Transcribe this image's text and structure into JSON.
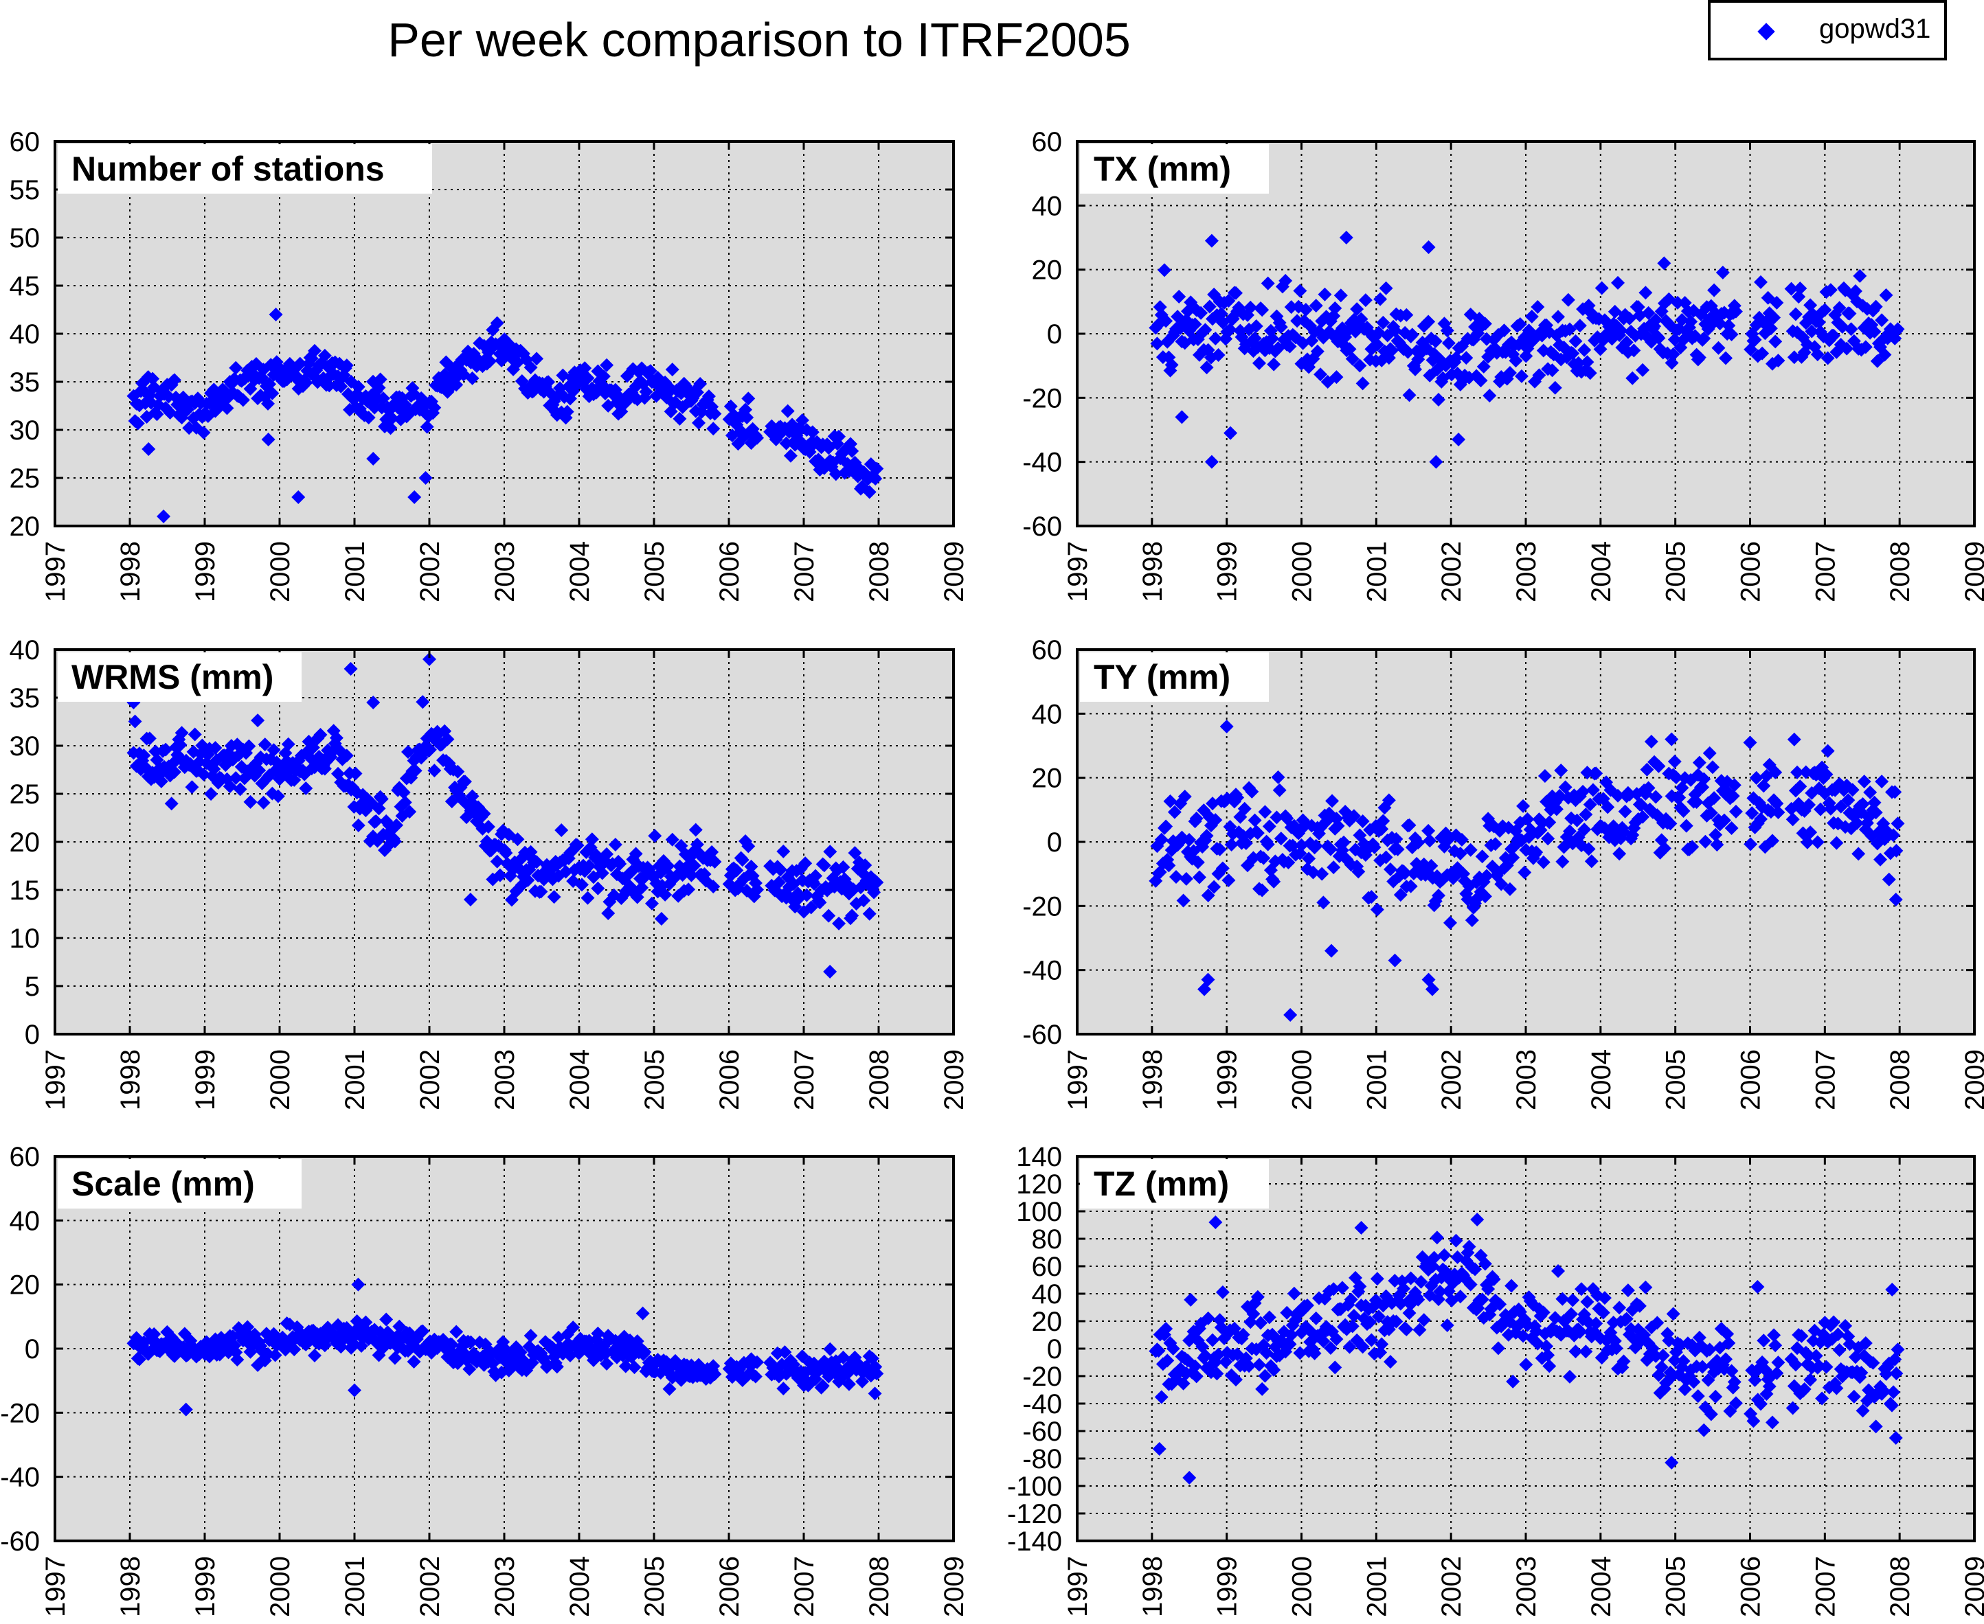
{
  "figure": {
    "title": "Per week comparison to ITRF2005",
    "legend": {
      "label": "gopwd31",
      "color": "#0000ff"
    },
    "colors": {
      "panel_background": "#dcdcdc",
      "marker": "#0000ff",
      "grid": "#000000"
    }
  },
  "chart_data": [
    {
      "type": "scatter",
      "title": "Number of stations",
      "series": [
        {
          "name": "gopwd31",
          "color": "#0000ff"
        }
      ],
      "xlim": [
        1997,
        2009
      ],
      "ylim": [
        20,
        60
      ],
      "xticks": [
        1997,
        1998,
        1999,
        2000,
        2001,
        2002,
        2003,
        2004,
        2005,
        2006,
        2007,
        2008,
        2009
      ],
      "yticks": [
        20,
        25,
        30,
        35,
        40,
        45,
        50,
        55,
        60
      ],
      "grid": true,
      "trend": [
        [
          1998.05,
          33
        ],
        [
          1998.5,
          34
        ],
        [
          1998.9,
          31.5
        ],
        [
          1999.5,
          34.5
        ],
        [
          2000.1,
          36
        ],
        [
          2000.7,
          36.5
        ],
        [
          2001.0,
          34
        ],
        [
          2001.6,
          32
        ],
        [
          2002.0,
          33
        ],
        [
          2002.3,
          36
        ],
        [
          2002.9,
          38.5
        ],
        [
          2003.3,
          36
        ],
        [
          2003.7,
          32.5
        ],
        [
          2004.0,
          36.5
        ],
        [
          2004.5,
          33
        ],
        [
          2004.9,
          35.5
        ],
        [
          2005.5,
          33
        ],
        [
          2006.1,
          31
        ],
        [
          2006.6,
          30.5
        ],
        [
          2007.0,
          29
        ],
        [
          2007.5,
          27
        ],
        [
          2007.95,
          24
        ]
      ],
      "spread": 1.6,
      "outliers": [
        [
          1998.45,
          21
        ],
        [
          1998.25,
          28
        ],
        [
          2000.25,
          23
        ],
        [
          2001.8,
          23
        ],
        [
          2001.95,
          25
        ],
        [
          1999.95,
          42
        ],
        [
          1999.85,
          29
        ],
        [
          2001.25,
          27
        ]
      ]
    },
    {
      "type": "scatter",
      "title": "TX (mm)",
      "series": [
        {
          "name": "gopwd31",
          "color": "#0000ff"
        }
      ],
      "xlim": [
        1997,
        2009
      ],
      "ylim": [
        -60,
        60
      ],
      "xticks": [
        1997,
        1998,
        1999,
        2000,
        2001,
        2002,
        2003,
        2004,
        2005,
        2006,
        2007,
        2008,
        2009
      ],
      "yticks": [
        -60,
        -40,
        -20,
        0,
        20,
        40,
        60
      ],
      "grid": true,
      "trend": [
        [
          1998.05,
          2
        ],
        [
          1999.0,
          5
        ],
        [
          2000.0,
          0
        ],
        [
          2001.0,
          -3
        ],
        [
          2002.0,
          -6
        ],
        [
          2002.6,
          -5
        ],
        [
          2003.0,
          -4
        ],
        [
          2004.0,
          0
        ],
        [
          2005.0,
          1
        ],
        [
          2006.0,
          3
        ],
        [
          2007.0,
          3
        ],
        [
          2007.95,
          2
        ]
      ],
      "spread": 9,
      "outliers": [
        [
          1998.8,
          -40
        ],
        [
          2001.8,
          -40
        ],
        [
          1999.05,
          -31
        ],
        [
          2002.1,
          -33
        ],
        [
          2000.6,
          30
        ],
        [
          1998.8,
          29
        ],
        [
          2001.7,
          27
        ],
        [
          2004.85,
          22
        ],
        [
          1998.4,
          -26
        ]
      ]
    },
    {
      "type": "scatter",
      "title": "WRMS (mm)",
      "series": [
        {
          "name": "gopwd31",
          "color": "#0000ff"
        }
      ],
      "xlim": [
        1997,
        2009
      ],
      "ylim": [
        0,
        40
      ],
      "xticks": [
        1997,
        1998,
        1999,
        2000,
        2001,
        2002,
        2003,
        2004,
        2005,
        2006,
        2007,
        2008,
        2009
      ],
      "yticks": [
        0,
        5,
        10,
        15,
        20,
        25,
        30,
        35,
        40
      ],
      "grid": true,
      "trend": [
        [
          1998.05,
          29
        ],
        [
          1999.0,
          28
        ],
        [
          2000.0,
          28
        ],
        [
          2000.8,
          29
        ],
        [
          2001.0,
          25
        ],
        [
          2001.5,
          20
        ],
        [
          2001.9,
          31
        ],
        [
          2002.2,
          29
        ],
        [
          2002.6,
          23
        ],
        [
          2003.0,
          18
        ],
        [
          2003.6,
          17
        ],
        [
          2004.0,
          18
        ],
        [
          2004.5,
          17
        ],
        [
          2005.0,
          17
        ],
        [
          2006.0,
          17
        ],
        [
          2007.0,
          15.5
        ],
        [
          2007.95,
          15
        ]
      ],
      "spread": 2.3,
      "outliers": [
        [
          2007.35,
          6.5
        ],
        [
          2002.0,
          39
        ],
        [
          2000.95,
          38
        ],
        [
          2001.25,
          34.5
        ],
        [
          2002.55,
          14
        ],
        [
          2005.1,
          12
        ],
        [
          1998.05,
          34.5
        ]
      ]
    },
    {
      "type": "scatter",
      "title": "TY (mm)",
      "series": [
        {
          "name": "gopwd31",
          "color": "#0000ff"
        }
      ],
      "xlim": [
        1997,
        2009
      ],
      "ylim": [
        -60,
        60
      ],
      "xticks": [
        1997,
        1998,
        1999,
        2000,
        2001,
        2002,
        2003,
        2004,
        2005,
        2006,
        2007,
        2008,
        2009
      ],
      "yticks": [
        -60,
        -40,
        -20,
        0,
        20,
        40,
        60
      ],
      "grid": true,
      "trend": [
        [
          1998.05,
          -3
        ],
        [
          1999.0,
          2
        ],
        [
          2000.0,
          0
        ],
        [
          2001.0,
          -2
        ],
        [
          2001.8,
          -8
        ],
        [
          2002.2,
          -12
        ],
        [
          2003.0,
          3
        ],
        [
          2004.0,
          8
        ],
        [
          2005.0,
          12
        ],
        [
          2006.0,
          12
        ],
        [
          2007.0,
          14
        ],
        [
          2007.95,
          4
        ]
      ],
      "spread": 11,
      "outliers": [
        [
          1999.85,
          -54
        ],
        [
          1998.7,
          -46
        ],
        [
          1998.75,
          -43
        ],
        [
          2001.75,
          -46
        ],
        [
          2001.7,
          -43
        ],
        [
          1999.0,
          36
        ],
        [
          2000.4,
          -34
        ],
        [
          2001.25,
          -37
        ],
        [
          2004.95,
          32
        ],
        [
          2006.0,
          31
        ],
        [
          2007.95,
          -18
        ]
      ]
    },
    {
      "type": "scatter",
      "title": "Scale (mm)",
      "series": [
        {
          "name": "gopwd31",
          "color": "#0000ff"
        }
      ],
      "xlim": [
        1997,
        2009
      ],
      "ylim": [
        -60,
        60
      ],
      "xticks": [
        1997,
        1998,
        1999,
        2000,
        2001,
        2002,
        2003,
        2004,
        2005,
        2006,
        2007,
        2008,
        2009
      ],
      "yticks": [
        -60,
        -40,
        -20,
        0,
        20,
        40,
        60
      ],
      "grid": true,
      "trend": [
        [
          1998.05,
          2
        ],
        [
          1999.0,
          0
        ],
        [
          2000.0,
          2
        ],
        [
          2001.0,
          5
        ],
        [
          2002.0,
          0
        ],
        [
          2003.0,
          -3
        ],
        [
          2004.0,
          1
        ],
        [
          2004.8,
          0
        ],
        [
          2005.0,
          -7
        ],
        [
          2006.0,
          -6
        ],
        [
          2007.0,
          -7
        ],
        [
          2007.95,
          -6
        ]
      ],
      "spread": 3.5,
      "outliers": [
        [
          1998.75,
          -19
        ],
        [
          2001.05,
          20
        ],
        [
          2001.0,
          -13
        ],
        [
          2004.85,
          11
        ],
        [
          2007.95,
          -14
        ]
      ]
    },
    {
      "type": "scatter",
      "title": "TZ (mm)",
      "series": [
        {
          "name": "gopwd31",
          "color": "#0000ff"
        }
      ],
      "xlim": [
        1997,
        2009
      ],
      "ylim": [
        -140,
        140
      ],
      "xticks": [
        1997,
        1998,
        1999,
        2000,
        2001,
        2002,
        2003,
        2004,
        2005,
        2006,
        2007,
        2008,
        2009
      ],
      "yticks": [
        -140,
        -120,
        -100,
        -80,
        -60,
        -40,
        -20,
        0,
        20,
        40,
        60,
        80,
        100,
        120,
        140
      ],
      "grid": true,
      "trend": [
        [
          1998.05,
          -10
        ],
        [
          1999.0,
          5
        ],
        [
          2000.0,
          10
        ],
        [
          2001.0,
          25
        ],
        [
          2002.0,
          50
        ],
        [
          2002.3,
          55
        ],
        [
          2002.6,
          20
        ],
        [
          2003.0,
          20
        ],
        [
          2004.0,
          15
        ],
        [
          2004.5,
          5
        ],
        [
          2005.0,
          -15
        ],
        [
          2006.0,
          -20
        ],
        [
          2007.0,
          -5
        ],
        [
          2007.95,
          -35
        ]
      ],
      "spread": 22,
      "outliers": [
        [
          1998.5,
          -94
        ],
        [
          2004.95,
          -83
        ],
        [
          1998.85,
          92
        ],
        [
          2002.35,
          94
        ],
        [
          2000.8,
          88
        ],
        [
          1998.1,
          -73
        ],
        [
          2007.95,
          -65
        ],
        [
          2007.9,
          43
        ],
        [
          2006.1,
          45
        ]
      ]
    }
  ]
}
